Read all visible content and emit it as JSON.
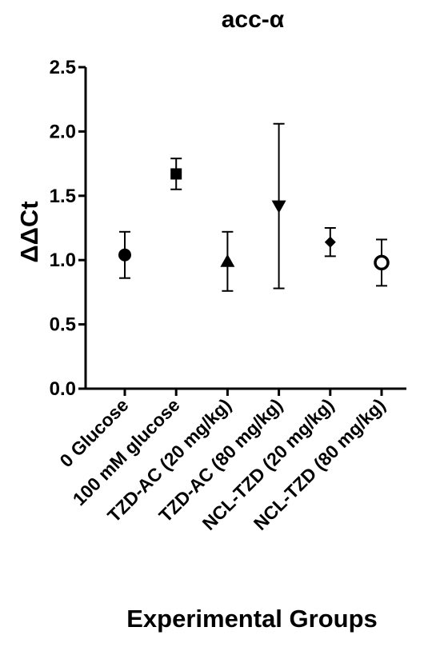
{
  "chart_data": {
    "type": "scatter",
    "title": "acc-α",
    "xlabel": "Experimental Groups",
    "ylabel": "ΔΔCt",
    "ylim": [
      0,
      2.5
    ],
    "yticks": [
      "0.0",
      "0.5",
      "1.0",
      "1.5",
      "2.0",
      "2.5"
    ],
    "categories": [
      "0 Glucose",
      "100 mM glucose",
      "TZD-AC (20 mg/kg)",
      "TZD-AC (80 mg/kg)",
      "NCL-TZD (20 mg/kg)",
      "NCL-TZD (80 mg/kg)"
    ],
    "series": [
      {
        "values": [
          1.04,
          1.67,
          0.99,
          1.42,
          1.14,
          0.98
        ],
        "error_lower": [
          0.86,
          1.55,
          0.76,
          0.78,
          1.03,
          0.8
        ],
        "error_upper": [
          1.22,
          1.79,
          1.22,
          2.06,
          1.25,
          1.16
        ],
        "markers": [
          "circle",
          "square",
          "triangle-up",
          "triangle-down",
          "diamond",
          "circle-open"
        ]
      }
    ],
    "grid": false,
    "legend": "none",
    "colors": {
      "marker": "#000000",
      "axis": "#000000"
    }
  }
}
